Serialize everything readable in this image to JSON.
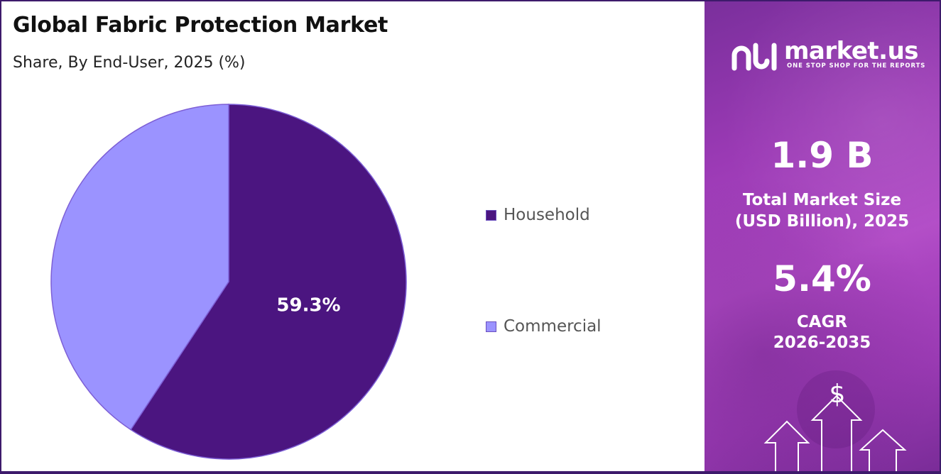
{
  "chart_data": {
    "type": "pie",
    "title": "Global Fabric Protection Market",
    "subtitle": "Share, By End-User, 2025 (%)",
    "categories": [
      "Household",
      "Commercial"
    ],
    "values": [
      59.3,
      40.7
    ],
    "data_labels": [
      "59.3%",
      ""
    ],
    "colors": [
      "#4b1580",
      "#9b93ff"
    ],
    "legend_placement": "right"
  },
  "sidebar": {
    "logo_text": "market.us",
    "logo_tagline": "ONE STOP SHOP FOR THE REPORTS",
    "market_size_value": "1.9 B",
    "market_size_label_line1": "Total Market Size",
    "market_size_label_line2": "(USD Billion), 2025",
    "cagr_value": "5.4%",
    "cagr_label_line1": "CAGR",
    "cagr_label_line2": "2026-2035",
    "dollar_symbol": "$"
  }
}
